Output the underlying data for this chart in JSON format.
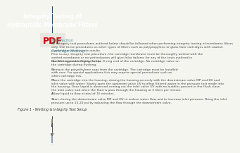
{
  "title_line1": "Integrity Testing of",
  "title_line2": "Hydrophilic Membrane Filters",
  "header_bg": "#2d4a6b",
  "header_text_color": "#ffffff",
  "page_bg": "#f5f5f0",
  "left_triangle_color": "#d8d8d0",
  "pdf_text_color": "#cc0000",
  "pdf_bg_color": "#e8e8e0",
  "section1_header": "Introduction",
  "section1_header_color": "#4a90a4",
  "section2_header": "Cartridge Wetting",
  "section2_header_color": "#4a90a4",
  "body_text_color": "#444444",
  "body_font_size": 3.2,
  "header_font_size": 5.5,
  "section_header_font_size": 3.8,
  "figure_caption": "Figure 1 - Wetting & Integrity Test Setup",
  "figure_caption_color": "#333333"
}
